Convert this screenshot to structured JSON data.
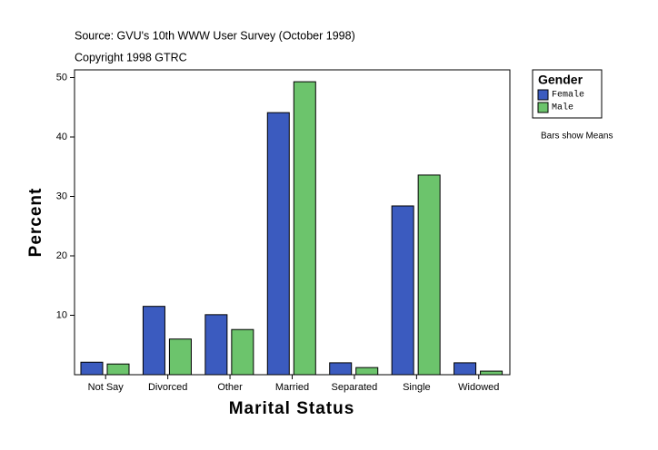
{
  "chart_data": {
    "type": "bar",
    "subtitle": "Source: GVU's 10th WWW User Survey (October 1998)",
    "copyright": "Copyright 1998 GTRC",
    "note": "Bars show Means",
    "legend_title": "Gender",
    "x_label": "Marital Status",
    "y_label": "Percent",
    "categories": [
      "Not Say",
      "Divorced",
      "Other",
      "Married",
      "Separated",
      "Single",
      "Widowed"
    ],
    "series": [
      {
        "name": "Female",
        "color": "#3b5bbf",
        "values": [
          2.1,
          11.5,
          10.1,
          44.1,
          2.0,
          28.4,
          2.0
        ]
      },
      {
        "name": "Male",
        "color": "#6cc46c",
        "values": [
          1.8,
          6.0,
          7.6,
          49.3,
          1.2,
          33.6,
          0.6
        ]
      }
    ],
    "ylim": [
      0,
      51.3
    ],
    "yticks": [
      10,
      20,
      30,
      40,
      50
    ],
    "legend": "right"
  }
}
